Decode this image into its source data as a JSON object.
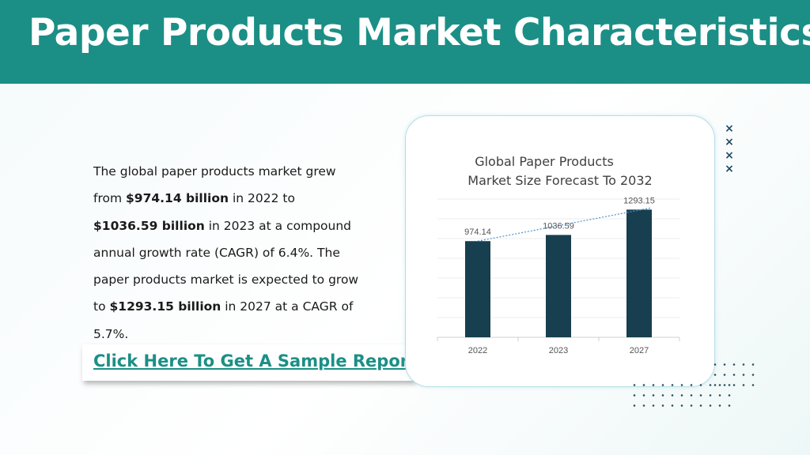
{
  "header": {
    "title": "Paper Products Market Characteristics:"
  },
  "body": {
    "p1": "The global paper products market grew from ",
    "b1": "$974.14 billion",
    "p2": " in 2022 to ",
    "b2": "$1036.59 billion",
    "p3": " in 2023 at a compound annual growth rate (CAGR) of 6.4%. The paper products market is expected to grow to ",
    "b3": "$1293.15 billion",
    "p4": " in 2027 at a CAGR of 5.7%."
  },
  "cta": {
    "label": "Click Here To Get A Sample Report"
  },
  "decor": {
    "cross_icon": "×"
  },
  "colors": {
    "header": "#1b8f86",
    "bar": "#173f4f",
    "trendline": "#4a90c8",
    "link": "#1b8f86"
  },
  "chart_data": {
    "type": "bar",
    "title_line1": "Global Paper Products",
    "title_line2": "Market Size Forecast To 2032",
    "categories": [
      "2022",
      "2023",
      "2027"
    ],
    "values": [
      974.14,
      1036.59,
      1293.15
    ],
    "value_labels": [
      "974.14",
      "1036.59",
      "1293.15"
    ],
    "ylim": [
      0,
      1400
    ],
    "grid": true,
    "trendline": "dotted linear"
  }
}
